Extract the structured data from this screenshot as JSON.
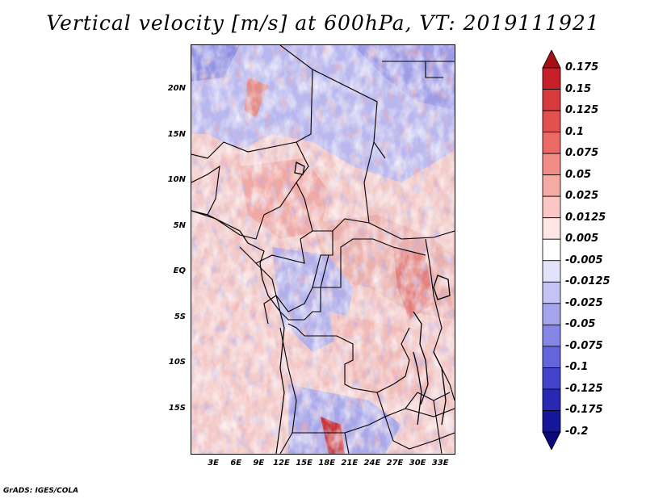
{
  "title": "Vertical velocity [m/s] at 600hPa, VT: 2019111921",
  "credit": "GrADS: IGES/COLA",
  "map": {
    "projection": "latlon",
    "lon_range": [
      0,
      35
    ],
    "lat_range": [
      -20,
      25
    ],
    "y_ticks": [
      {
        "label": "20N",
        "lat": 20
      },
      {
        "label": "15N",
        "lat": 15
      },
      {
        "label": "10N",
        "lat": 10
      },
      {
        "label": "5N",
        "lat": 5
      },
      {
        "label": "EQ",
        "lat": 0
      },
      {
        "label": "5S",
        "lat": -5
      },
      {
        "label": "10S",
        "lat": -10
      },
      {
        "label": "15S",
        "lat": -15
      }
    ],
    "x_ticks": [
      {
        "label": "3E",
        "lon": 3
      },
      {
        "label": "6E",
        "lon": 6
      },
      {
        "label": "9E",
        "lon": 9
      },
      {
        "label": "12E",
        "lon": 12
      },
      {
        "label": "15E",
        "lon": 15
      },
      {
        "label": "18E",
        "lon": 18
      },
      {
        "label": "21E",
        "lon": 21
      },
      {
        "label": "24E",
        "lon": 24
      },
      {
        "label": "27E",
        "lon": 27
      },
      {
        "label": "30E",
        "lon": 30
      },
      {
        "label": "33E",
        "lon": 33
      }
    ]
  },
  "colorbar": {
    "labels": [
      "0.175",
      "0.15",
      "0.125",
      "0.1",
      "0.075",
      "0.05",
      "0.025",
      "0.0125",
      "0.005",
      "-0.005",
      "-0.0125",
      "-0.025",
      "-0.05",
      "-0.075",
      "-0.1",
      "-0.125",
      "-0.175",
      "-0.2"
    ],
    "colors": [
      "#a50f15",
      "#c8202a",
      "#d8393c",
      "#e35050",
      "#ec6a66",
      "#f28c86",
      "#f6aaa4",
      "#fac8c4",
      "#fde6e4",
      "#ffffff",
      "#e2e2fa",
      "#c4c4f4",
      "#a5a5ee",
      "#8686e6",
      "#6464dc",
      "#4343cc",
      "#2828b4",
      "#16169a",
      "#0a0a7a"
    ]
  }
}
